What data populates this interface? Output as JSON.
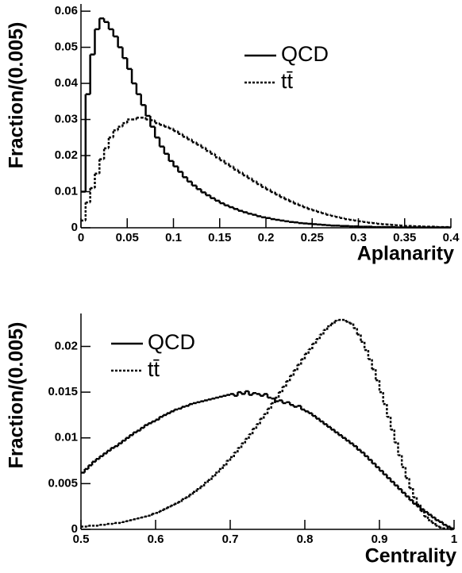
{
  "chart_data": [
    {
      "type": "histogram",
      "x_label": "Aplanarity",
      "y_label": "Fraction/(0.005)",
      "legend": "upper right",
      "bins": [
        0,
        0.005,
        0.01,
        0.015,
        0.02,
        0.025,
        0.03,
        0.035,
        0.04,
        0.045,
        0.05,
        0.055,
        0.06,
        0.065,
        0.07,
        0.075,
        0.08,
        0.085,
        0.09,
        0.095,
        0.1,
        0.105,
        0.11,
        0.115,
        0.12,
        0.125,
        0.13,
        0.135,
        0.14,
        0.145,
        0.15,
        0.155,
        0.16,
        0.165,
        0.17,
        0.175,
        0.18,
        0.185,
        0.19,
        0.195,
        0.2,
        0.205,
        0.21,
        0.215,
        0.22,
        0.225,
        0.23,
        0.235,
        0.24,
        0.245,
        0.25,
        0.255,
        0.26,
        0.265,
        0.27,
        0.275,
        0.28,
        0.285,
        0.29,
        0.295,
        0.3,
        0.305,
        0.31,
        0.315,
        0.32,
        0.325,
        0.33,
        0.335,
        0.34,
        0.345,
        0.35,
        0.355,
        0.36,
        0.365,
        0.37,
        0.375,
        0.38,
        0.385,
        0.39,
        0.395,
        0.4
      ],
      "series": [
        {
          "name": "QCD",
          "color": "#000000",
          "linestyle": "solid",
          "values": [
            0.01,
            0.037,
            0.048,
            0.055,
            0.058,
            0.057,
            0.055,
            0.053,
            0.05,
            0.047,
            0.044,
            0.04,
            0.037,
            0.034,
            0.031,
            0.028,
            0.025,
            0.0225,
            0.0205,
            0.0185,
            0.017,
            0.0155,
            0.014,
            0.0128,
            0.0117,
            0.0107,
            0.0098,
            0.009,
            0.0082,
            0.0075,
            0.0068,
            0.0062,
            0.0057,
            0.0052,
            0.0047,
            0.0043,
            0.0039,
            0.0036,
            0.0032,
            0.0029,
            0.0027,
            0.0024,
            0.0022,
            0.002,
            0.0018,
            0.0016,
            0.0015,
            0.0013,
            0.0012,
            0.0011,
            0.001,
            0.0009,
            0.0008,
            0.0007,
            0.0006,
            0.0006,
            0.0005,
            0.0005,
            0.0004,
            0.0004,
            0.0003,
            0.0003,
            0.0003,
            0.0002,
            0.0002,
            0.0002,
            0.0002,
            0.0002,
            0.0001,
            0.0001,
            0.0001,
            0.0001,
            0.0001,
            0.0001,
            0.0001,
            0.0001,
            0.0001,
            0.0001,
            0.0001,
            0.0001
          ]
        },
        {
          "name": "tt̄",
          "color": "#000000",
          "linestyle": "dotted",
          "values": [
            0.002,
            0.007,
            0.011,
            0.015,
            0.019,
            0.022,
            0.025,
            0.027,
            0.028,
            0.029,
            0.03,
            0.03,
            0.0305,
            0.0305,
            0.03,
            0.0298,
            0.029,
            0.0285,
            0.028,
            0.0275,
            0.0268,
            0.026,
            0.0252,
            0.0245,
            0.0237,
            0.023,
            0.0222,
            0.0213,
            0.0205,
            0.0195,
            0.0187,
            0.0178,
            0.017,
            0.0161,
            0.0153,
            0.0145,
            0.0137,
            0.0129,
            0.0121,
            0.0113,
            0.0106,
            0.0099,
            0.0092,
            0.0085,
            0.0079,
            0.0073,
            0.0067,
            0.0062,
            0.0057,
            0.0052,
            0.0048,
            0.0044,
            0.004,
            0.0036,
            0.0033,
            0.003,
            0.0027,
            0.0024,
            0.0022,
            0.002,
            0.0018,
            0.0016,
            0.0014,
            0.0013,
            0.0011,
            0.001,
            0.0009,
            0.0008,
            0.0007,
            0.0006,
            0.0005,
            0.0005,
            0.0004,
            0.0004,
            0.0003,
            0.0003,
            0.0003,
            0.0002,
            0.0002,
            0.0002
          ]
        }
      ],
      "xlim": [
        0,
        0.4
      ],
      "xticks": [
        0,
        0.05,
        0.1,
        0.15,
        0.2,
        0.25,
        0.3,
        0.35,
        0.4
      ],
      "ylim": [
        0,
        0.062
      ],
      "yticks": [
        0,
        0.01,
        0.02,
        0.03,
        0.04,
        0.05,
        0.06
      ]
    },
    {
      "type": "histogram",
      "x_label": "Centrality",
      "y_label": "Fraction/(0.005)",
      "legend": "upper left",
      "bins": [
        0.5,
        0.505,
        0.51,
        0.515,
        0.52,
        0.525,
        0.53,
        0.535,
        0.54,
        0.545,
        0.55,
        0.555,
        0.56,
        0.565,
        0.57,
        0.575,
        0.58,
        0.585,
        0.59,
        0.595,
        0.6,
        0.605,
        0.61,
        0.615,
        0.62,
        0.625,
        0.63,
        0.635,
        0.64,
        0.645,
        0.65,
        0.655,
        0.66,
        0.665,
        0.67,
        0.675,
        0.68,
        0.685,
        0.69,
        0.695,
        0.7,
        0.705,
        0.71,
        0.715,
        0.72,
        0.725,
        0.73,
        0.735,
        0.74,
        0.745,
        0.75,
        0.755,
        0.76,
        0.765,
        0.77,
        0.775,
        0.78,
        0.785,
        0.79,
        0.795,
        0.8,
        0.805,
        0.81,
        0.815,
        0.82,
        0.825,
        0.83,
        0.835,
        0.84,
        0.845,
        0.85,
        0.855,
        0.86,
        0.865,
        0.87,
        0.875,
        0.88,
        0.885,
        0.89,
        0.895,
        0.9,
        0.905,
        0.91,
        0.915,
        0.92,
        0.925,
        0.93,
        0.935,
        0.94,
        0.945,
        0.95,
        0.955,
        0.96,
        0.965,
        0.97,
        0.975,
        0.98,
        0.985,
        0.99,
        0.995,
        1
      ],
      "series": [
        {
          "name": "QCD",
          "color": "#000000",
          "linestyle": "solid",
          "values": [
            0.0062,
            0.0066,
            0.007,
            0.0074,
            0.0077,
            0.008,
            0.0083,
            0.0086,
            0.0089,
            0.0091,
            0.0094,
            0.0097,
            0.01,
            0.0103,
            0.0106,
            0.0108,
            0.0111,
            0.0114,
            0.0116,
            0.0118,
            0.012,
            0.0123,
            0.0125,
            0.0127,
            0.0129,
            0.0131,
            0.0132,
            0.0134,
            0.0135,
            0.0137,
            0.0138,
            0.0139,
            0.014,
            0.0141,
            0.0142,
            0.0143,
            0.0144,
            0.0145,
            0.0146,
            0.0147,
            0.0148,
            0.0146,
            0.015,
            0.0148,
            0.0151,
            0.0147,
            0.0149,
            0.0148,
            0.0146,
            0.0148,
            0.0144,
            0.0143,
            0.014,
            0.0141,
            0.0138,
            0.0139,
            0.0136,
            0.0134,
            0.0135,
            0.0131,
            0.0129,
            0.0127,
            0.0124,
            0.0121,
            0.0118,
            0.0115,
            0.0112,
            0.0109,
            0.0106,
            0.0103,
            0.01,
            0.0097,
            0.0094,
            0.0091,
            0.0087,
            0.0084,
            0.008,
            0.0076,
            0.0072,
            0.0068,
            0.0064,
            0.006,
            0.0056,
            0.0052,
            0.0048,
            0.0044,
            0.004,
            0.0036,
            0.0032,
            0.0028,
            0.0025,
            0.0022,
            0.0019,
            0.0016,
            0.0013,
            0.001,
            0.0008,
            0.0005,
            0.0003,
            0.0001
          ]
        },
        {
          "name": "tt̄",
          "color": "#000000",
          "linestyle": "dotted",
          "values": [
            0.0003,
            0.0003,
            0.0004,
            0.0004,
            0.0004,
            0.0005,
            0.0005,
            0.0006,
            0.0006,
            0.0007,
            0.0007,
            0.0008,
            0.0009,
            0.001,
            0.0011,
            0.0012,
            0.0013,
            0.0014,
            0.0015,
            0.0017,
            0.0018,
            0.002,
            0.0022,
            0.0024,
            0.0026,
            0.0028,
            0.003,
            0.0033,
            0.0035,
            0.0038,
            0.0041,
            0.0044,
            0.0047,
            0.0051,
            0.0054,
            0.0058,
            0.0062,
            0.0066,
            0.007,
            0.0075,
            0.0079,
            0.0084,
            0.0089,
            0.0094,
            0.0099,
            0.0104,
            0.011,
            0.0115,
            0.0121,
            0.0126,
            0.0132,
            0.0138,
            0.0144,
            0.015,
            0.0156,
            0.0162,
            0.0168,
            0.0174,
            0.018,
            0.0186,
            0.0192,
            0.0197,
            0.0203,
            0.0208,
            0.0213,
            0.0218,
            0.0222,
            0.0225,
            0.0228,
            0.0229,
            0.0229,
            0.0227,
            0.0225,
            0.022,
            0.0213,
            0.0205,
            0.0196,
            0.0186,
            0.0175,
            0.0163,
            0.015,
            0.0137,
            0.0123,
            0.0109,
            0.0095,
            0.0081,
            0.0068,
            0.0056,
            0.0045,
            0.0035,
            0.0027,
            0.002,
            0.0014,
            0.001,
            0.0007,
            0.0004,
            0.0002,
            0.0001,
            0.0001,
            0
          ]
        }
      ],
      "xlim": [
        0.5,
        1
      ],
      "xticks": [
        0.5,
        0.6,
        0.7,
        0.8,
        0.9,
        1
      ],
      "ylim": [
        0,
        0.0236
      ],
      "yticks": [
        0,
        0.005,
        0.01,
        0.015,
        0.02
      ]
    }
  ]
}
